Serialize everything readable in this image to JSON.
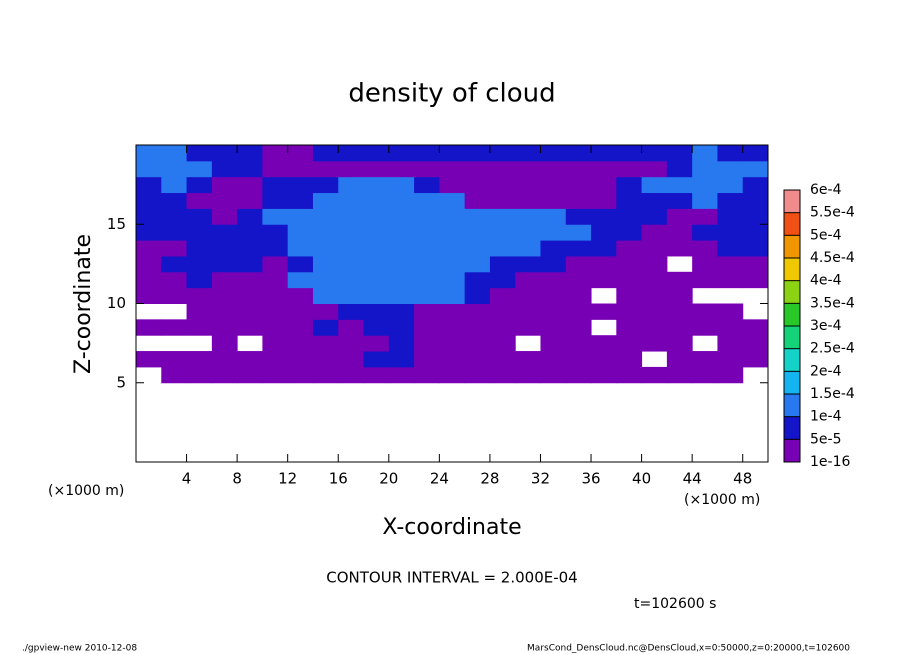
{
  "chart_data": {
    "type": "heatmap",
    "title": "density of cloud",
    "x_label": "X-coordinate",
    "y_label": "Z-coordinate",
    "x_unit_labels": [
      "(×1000 m)",
      "(×1000 m)"
    ],
    "contour_interval": "CONTOUR INTERVAL = 2.000E-04",
    "time_label": "t=102600 s",
    "footer_left": "./gpview-new  2010-12-08",
    "footer_right": "MarsCond_DensCloud.nc@DensCloud,x=0:50000,z=0:20000,t=102600",
    "xlim": [
      0,
      50
    ],
    "ylim": [
      0,
      20
    ],
    "xticks": [
      4,
      8,
      12,
      16,
      20,
      24,
      28,
      32,
      36,
      40,
      44,
      48
    ],
    "yticks": [
      5,
      10,
      15
    ],
    "x_edges": [
      0,
      2,
      4,
      6,
      8,
      10,
      12,
      14,
      16,
      18,
      20,
      22,
      24,
      26,
      28,
      30,
      32,
      34,
      36,
      38,
      40,
      42,
      44,
      46,
      48,
      50
    ],
    "z_edges": [
      5,
      6,
      7,
      8,
      9,
      10,
      11,
      12,
      13,
      14,
      15,
      16,
      17,
      18,
      19,
      20
    ],
    "values": [
      [
        null,
        2e-05,
        2e-05,
        2e-05,
        2e-05,
        2e-05,
        2e-05,
        2e-05,
        2e-05,
        2e-05,
        2e-05,
        2e-05,
        2e-05,
        2e-05,
        2e-05,
        2e-05,
        2e-05,
        2e-05,
        2e-05,
        2e-05,
        2e-05,
        2e-05,
        2e-05,
        2e-05,
        null
      ],
      [
        2e-05,
        2e-05,
        2e-05,
        2e-05,
        2e-05,
        2e-05,
        2e-05,
        2e-05,
        2e-05,
        7e-05,
        7e-05,
        2e-05,
        2e-05,
        2e-05,
        2e-05,
        2e-05,
        2e-05,
        2e-05,
        2e-05,
        2e-05,
        null,
        2e-05,
        2e-05,
        2e-05,
        2e-05
      ],
      [
        null,
        null,
        null,
        2e-05,
        null,
        2e-05,
        2e-05,
        2e-05,
        2e-05,
        2e-05,
        7e-05,
        2e-05,
        2e-05,
        2e-05,
        2e-05,
        null,
        2e-05,
        2e-05,
        2e-05,
        2e-05,
        2e-05,
        2e-05,
        null,
        2e-05,
        2e-05
      ],
      [
        2e-05,
        2e-05,
        2e-05,
        2e-05,
        2e-05,
        2e-05,
        2e-05,
        7e-05,
        2e-05,
        7e-05,
        7e-05,
        2e-05,
        2e-05,
        2e-05,
        2e-05,
        2e-05,
        2e-05,
        2e-05,
        null,
        2e-05,
        2e-05,
        2e-05,
        2e-05,
        2e-05,
        2e-05
      ],
      [
        null,
        null,
        2e-05,
        2e-05,
        2e-05,
        2e-05,
        2e-05,
        2e-05,
        7e-05,
        7e-05,
        7e-05,
        2e-05,
        2e-05,
        2e-05,
        2e-05,
        2e-05,
        2e-05,
        2e-05,
        2e-05,
        2e-05,
        2e-05,
        2e-05,
        2e-05,
        2e-05,
        null
      ],
      [
        2e-05,
        2e-05,
        2e-05,
        2e-05,
        2e-05,
        2e-05,
        2e-05,
        0.00012,
        0.00012,
        0.00012,
        0.00012,
        0.00012,
        0.00012,
        7e-05,
        2e-05,
        2e-05,
        2e-05,
        2e-05,
        null,
        2e-05,
        2e-05,
        2e-05,
        null,
        null,
        null
      ],
      [
        2e-05,
        2e-05,
        7e-05,
        2e-05,
        2e-05,
        2e-05,
        0.00012,
        0.00012,
        0.00012,
        0.00012,
        0.00012,
        0.00012,
        0.00012,
        7e-05,
        7e-05,
        2e-05,
        2e-05,
        2e-05,
        2e-05,
        2e-05,
        2e-05,
        2e-05,
        2e-05,
        2e-05,
        2e-05
      ],
      [
        2e-05,
        7e-05,
        7e-05,
        7e-05,
        7e-05,
        2e-05,
        7e-05,
        0.00012,
        0.00012,
        0.00012,
        0.00012,
        0.00012,
        0.00012,
        0.00012,
        7e-05,
        7e-05,
        7e-05,
        2e-05,
        2e-05,
        2e-05,
        2e-05,
        null,
        2e-05,
        2e-05,
        2e-05
      ],
      [
        2e-05,
        2e-05,
        7e-05,
        7e-05,
        7e-05,
        7e-05,
        0.00012,
        0.00012,
        0.00012,
        0.00012,
        0.00012,
        0.00012,
        0.00012,
        0.00012,
        0.00012,
        0.00012,
        7e-05,
        7e-05,
        7e-05,
        2e-05,
        2e-05,
        2e-05,
        2e-05,
        7e-05,
        7e-05
      ],
      [
        7e-05,
        7e-05,
        7e-05,
        7e-05,
        7e-05,
        7e-05,
        0.00012,
        0.00012,
        0.00012,
        0.00012,
        0.00012,
        0.00012,
        0.00012,
        0.00012,
        0.00012,
        0.00012,
        0.00012,
        0.00012,
        7e-05,
        7e-05,
        2e-05,
        2e-05,
        7e-05,
        7e-05,
        7e-05
      ],
      [
        7e-05,
        7e-05,
        7e-05,
        2e-05,
        7e-05,
        0.00012,
        0.00012,
        0.00012,
        0.00012,
        0.00012,
        0.00012,
        0.00012,
        0.00012,
        0.00012,
        0.00012,
        0.00012,
        0.00012,
        7e-05,
        7e-05,
        7e-05,
        7e-05,
        2e-05,
        2e-05,
        7e-05,
        7e-05
      ],
      [
        7e-05,
        7e-05,
        2e-05,
        2e-05,
        2e-05,
        7e-05,
        7e-05,
        0.00012,
        0.00012,
        0.00012,
        0.00012,
        0.00012,
        0.00012,
        2e-05,
        2e-05,
        2e-05,
        2e-05,
        2e-05,
        2e-05,
        7e-05,
        7e-05,
        7e-05,
        0.00012,
        7e-05,
        7e-05
      ],
      [
        7e-05,
        0.00012,
        7e-05,
        2e-05,
        2e-05,
        7e-05,
        7e-05,
        7e-05,
        0.00012,
        0.00012,
        0.00012,
        7e-05,
        2e-05,
        2e-05,
        2e-05,
        2e-05,
        2e-05,
        2e-05,
        2e-05,
        7e-05,
        0.00012,
        0.00012,
        0.00012,
        0.00012,
        7e-05
      ],
      [
        0.00012,
        0.00012,
        0.00012,
        7e-05,
        7e-05,
        2e-05,
        2e-05,
        2e-05,
        2e-05,
        2e-05,
        2e-05,
        2e-05,
        2e-05,
        2e-05,
        2e-05,
        2e-05,
        2e-05,
        2e-05,
        2e-05,
        2e-05,
        2e-05,
        7e-05,
        0.00012,
        0.00012,
        0.00012
      ],
      [
        0.00012,
        0.00012,
        7e-05,
        7e-05,
        7e-05,
        2e-05,
        2e-05,
        7e-05,
        7e-05,
        7e-05,
        7e-05,
        7e-05,
        7e-05,
        7e-05,
        7e-05,
        7e-05,
        7e-05,
        7e-05,
        7e-05,
        7e-05,
        7e-05,
        7e-05,
        0.00012,
        7e-05,
        7e-05
      ]
    ],
    "colorbar": {
      "levels": [
        {
          "value": 1e-16,
          "label": "1e-16"
        },
        {
          "value": 5e-05,
          "label": "5e-5"
        },
        {
          "value": 0.0001,
          "label": "1e-4"
        },
        {
          "value": 0.00015,
          "label": "1.5e-4"
        },
        {
          "value": 0.0002,
          "label": "2e-4"
        },
        {
          "value": 0.00025,
          "label": "2.5e-4"
        },
        {
          "value": 0.0003,
          "label": "3e-4"
        },
        {
          "value": 0.00035,
          "label": "3.5e-4"
        },
        {
          "value": 0.0004,
          "label": "4e-4"
        },
        {
          "value": 0.00045,
          "label": "4.5e-4"
        },
        {
          "value": 0.0005,
          "label": "5e-4"
        },
        {
          "value": 0.00055,
          "label": "5.5e-4"
        },
        {
          "value": 0.0006,
          "label": "6e-4"
        }
      ],
      "colors": [
        "#7800b4",
        "#1414c8",
        "#2878f0",
        "#14b4f0",
        "#14d2c8",
        "#14d278",
        "#28c828",
        "#8cd214",
        "#f0c800",
        "#f09600",
        "#f05014",
        "#f08c8c"
      ]
    }
  }
}
